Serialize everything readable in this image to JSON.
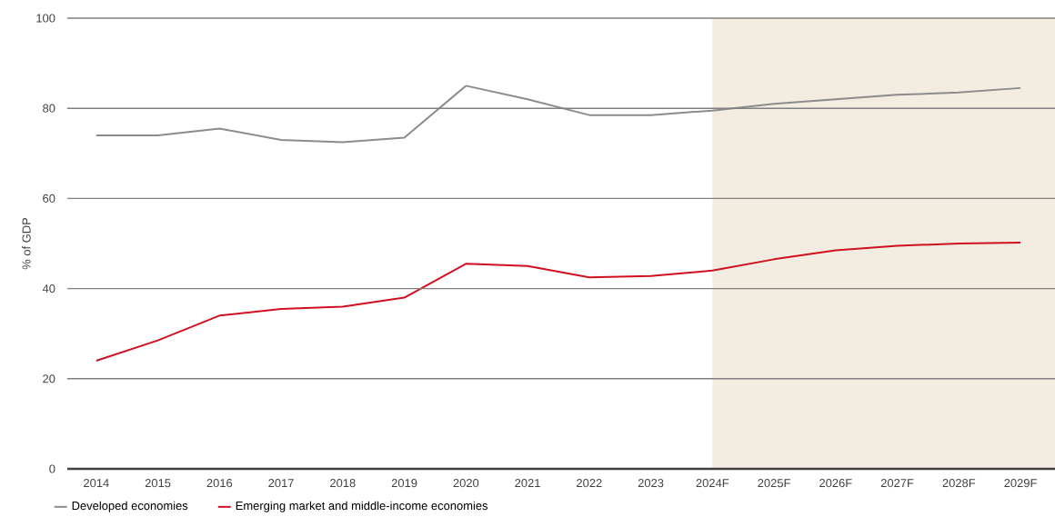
{
  "chart_data": {
    "type": "line",
    "ylabel": "% of GDP",
    "categories": [
      "2014",
      "2015",
      "2016",
      "2017",
      "2018",
      "2019",
      "2020",
      "2021",
      "2022",
      "2023",
      "2024F",
      "2025F",
      "2026F",
      "2027F",
      "2028F",
      "2029F"
    ],
    "series": [
      {
        "name": "Developed economies",
        "color": "#8c8c8c",
        "values": [
          74,
          74,
          75.5,
          73,
          72.5,
          73.5,
          85,
          82,
          78.5,
          78.5,
          79.5,
          81,
          82,
          83,
          83.5,
          84.5
        ]
      },
      {
        "name": "Emerging market and middle-income economies",
        "color": "#d0101e",
        "values": [
          24,
          28.5,
          34,
          35.5,
          36,
          38,
          45.5,
          45,
          42.5,
          42.8,
          44,
          46.5,
          48.5,
          49.5,
          50,
          50.2
        ]
      }
    ],
    "ylim": [
      0,
      100
    ],
    "yticks": [
      0,
      20,
      40,
      60,
      80,
      100
    ],
    "grid": "y",
    "legend": "bottom",
    "marker": "none",
    "line_style": "solid",
    "bands": [
      {
        "axis": "x",
        "from": "2024F",
        "to": "2029F",
        "color": "#f3ede1"
      }
    ]
  }
}
